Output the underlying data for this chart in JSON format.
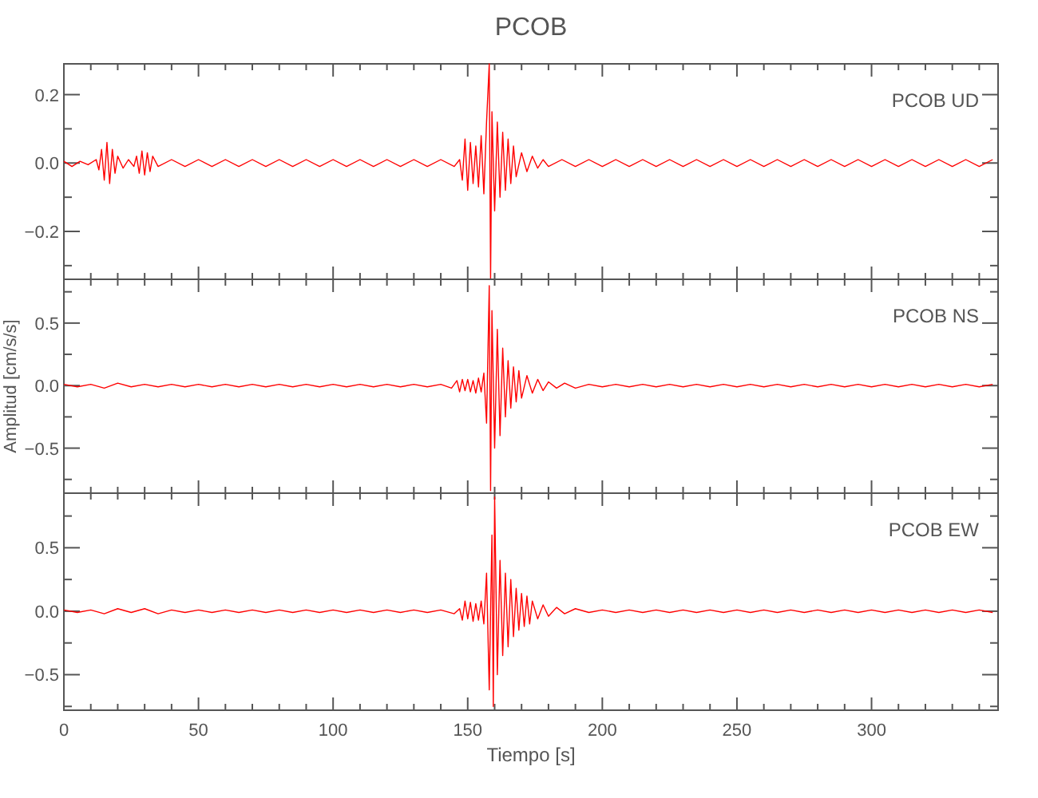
{
  "chart_data": [
    {
      "type": "line",
      "title": "PCOB",
      "annotations": [
        "PCOB   UD"
      ],
      "xlim": [
        0,
        347
      ],
      "ylim": [
        -0.34,
        0.29
      ],
      "tick_labels": "y",
      "grid": false,
      "marker": "none",
      "line_style": "solid",
      "xticks": [
        0,
        {
          "value": 10,
          "label": null
        },
        {
          "value": 20,
          "label": null
        },
        {
          "value": 30,
          "label": null
        },
        {
          "value": 40,
          "label": null
        },
        50,
        {
          "value": 60,
          "label": null
        },
        {
          "value": 70,
          "label": null
        },
        {
          "value": 80,
          "label": null
        },
        {
          "value": 90,
          "label": null
        },
        100,
        {
          "value": 110,
          "label": null
        },
        {
          "value": 120,
          "label": null
        },
        {
          "value": 130,
          "label": null
        },
        {
          "value": 140,
          "label": null
        },
        150,
        {
          "value": 160,
          "label": null
        },
        {
          "value": 170,
          "label": null
        },
        {
          "value": 180,
          "label": null
        },
        {
          "value": 190,
          "label": null
        },
        200,
        {
          "value": 210,
          "label": null
        },
        {
          "value": 220,
          "label": null
        },
        {
          "value": 230,
          "label": null
        },
        {
          "value": 240,
          "label": null
        },
        250,
        {
          "value": 260,
          "label": null
        },
        {
          "value": 270,
          "label": null
        },
        {
          "value": 280,
          "label": null
        },
        {
          "value": 290,
          "label": null
        },
        300,
        {
          "value": 310,
          "label": null
        },
        {
          "value": 320,
          "label": null
        },
        {
          "value": 330,
          "label": null
        },
        {
          "value": 340,
          "label": null
        }
      ],
      "yticks": [
        {
          "value": -0.3,
          "label": null
        },
        {
          "value": -0.2,
          "label": "−0.2"
        },
        {
          "value": -0.1,
          "label": null
        },
        {
          "value": 0,
          "label": "0.0"
        },
        {
          "value": 0.1,
          "label": null
        },
        {
          "value": 0.2,
          "label": "0.2"
        }
      ],
      "series": [
        {
          "color": "#ff0000",
          "x": [
            0,
            3,
            6,
            9,
            12,
            13,
            14,
            15,
            16,
            17,
            18,
            19,
            20,
            22,
            24,
            26,
            27,
            28,
            29,
            30,
            31,
            32,
            33,
            35,
            40,
            45,
            50,
            55,
            60,
            65,
            70,
            75,
            80,
            85,
            90,
            95,
            100,
            105,
            110,
            115,
            120,
            125,
            130,
            135,
            140,
            145,
            147,
            148,
            149,
            150,
            151,
            152,
            153,
            154,
            155,
            156,
            157,
            158,
            158.5,
            159,
            160,
            161,
            162,
            163,
            164,
            165,
            166,
            167,
            168,
            170,
            172,
            174,
            176,
            178,
            180,
            185,
            190,
            195,
            200,
            205,
            210,
            215,
            220,
            225,
            230,
            235,
            240,
            245,
            250,
            255,
            260,
            265,
            270,
            275,
            280,
            285,
            290,
            295,
            300,
            305,
            310,
            315,
            320,
            325,
            330,
            335,
            340,
            345
          ],
          "values": [
            0.005,
            -0.01,
            0.005,
            -0.005,
            0.01,
            -0.02,
            0.04,
            -0.05,
            0.06,
            -0.06,
            0.04,
            -0.03,
            0.02,
            -0.015,
            0.01,
            -0.01,
            0.02,
            -0.03,
            0.035,
            -0.035,
            0.03,
            -0.025,
            0.02,
            -0.01,
            0.01,
            -0.01,
            0.01,
            -0.01,
            0.01,
            -0.01,
            0.01,
            -0.01,
            0.01,
            -0.01,
            0.01,
            -0.01,
            0.01,
            -0.01,
            0.01,
            -0.01,
            0.01,
            -0.01,
            0.01,
            -0.01,
            0.01,
            -0.01,
            0.01,
            -0.05,
            0.07,
            -0.08,
            0.06,
            -0.06,
            0.05,
            -0.07,
            0.08,
            -0.09,
            0.12,
            0.29,
            -0.34,
            0.15,
            -0.14,
            0.12,
            -0.1,
            0.09,
            -0.08,
            0.07,
            -0.06,
            0.05,
            -0.04,
            0.03,
            -0.025,
            0.02,
            -0.015,
            0.01,
            -0.01,
            0.01,
            -0.01,
            0.01,
            -0.01,
            0.01,
            -0.01,
            0.01,
            -0.01,
            0.01,
            -0.01,
            0.01,
            -0.01,
            0.01,
            -0.01,
            0.01,
            -0.01,
            0.01,
            -0.01,
            0.01,
            -0.01,
            0.01,
            -0.01,
            0.01,
            -0.01,
            0.01,
            -0.01,
            0.01,
            -0.01,
            0.01,
            -0.01,
            0.01,
            -0.01,
            0.01
          ]
        }
      ]
    },
    {
      "type": "line",
      "ylabel": "Amplitud [cm/s/s]",
      "annotations": [
        "PCOB   NS"
      ],
      "xlim": [
        0,
        347
      ],
      "ylim": [
        -0.86,
        0.85
      ],
      "tick_labels": "y",
      "grid": false,
      "marker": "none",
      "line_style": "solid",
      "xticks": [
        0,
        {
          "value": 10,
          "label": null
        },
        {
          "value": 20,
          "label": null
        },
        {
          "value": 30,
          "label": null
        },
        {
          "value": 40,
          "label": null
        },
        50,
        {
          "value": 60,
          "label": null
        },
        {
          "value": 70,
          "label": null
        },
        {
          "value": 80,
          "label": null
        },
        {
          "value": 90,
          "label": null
        },
        100,
        {
          "value": 110,
          "label": null
        },
        {
          "value": 120,
          "label": null
        },
        {
          "value": 130,
          "label": null
        },
        {
          "value": 140,
          "label": null
        },
        150,
        {
          "value": 160,
          "label": null
        },
        {
          "value": 170,
          "label": null
        },
        {
          "value": 180,
          "label": null
        },
        {
          "value": 190,
          "label": null
        },
        200,
        {
          "value": 210,
          "label": null
        },
        {
          "value": 220,
          "label": null
        },
        {
          "value": 230,
          "label": null
        },
        {
          "value": 240,
          "label": null
        },
        250,
        {
          "value": 260,
          "label": null
        },
        {
          "value": 270,
          "label": null
        },
        {
          "value": 280,
          "label": null
        },
        {
          "value": 290,
          "label": null
        },
        300,
        {
          "value": 310,
          "label": null
        },
        {
          "value": 320,
          "label": null
        },
        {
          "value": 330,
          "label": null
        },
        {
          "value": 340,
          "label": null
        }
      ],
      "yticks": [
        {
          "value": -0.75,
          "label": null
        },
        {
          "value": -0.5,
          "label": "−0.5"
        },
        {
          "value": -0.25,
          "label": null
        },
        {
          "value": 0,
          "label": "0.0"
        },
        {
          "value": 0.25,
          "label": null
        },
        {
          "value": 0.5,
          "label": "0.5"
        },
        {
          "value": 0.75,
          "label": null
        }
      ],
      "series": [
        {
          "color": "#ff0000",
          "x": [
            0,
            5,
            10,
            15,
            20,
            25,
            30,
            35,
            40,
            45,
            50,
            55,
            60,
            65,
            70,
            75,
            80,
            85,
            90,
            95,
            100,
            105,
            110,
            115,
            120,
            125,
            130,
            135,
            140,
            144,
            146,
            147,
            148,
            149,
            150,
            151,
            152,
            153,
            154,
            155,
            156,
            157,
            158,
            158.5,
            159,
            160,
            161,
            162,
            163,
            164,
            165,
            166,
            167,
            168,
            169,
            170,
            172,
            174,
            176,
            178,
            180,
            183,
            186,
            190,
            195,
            200,
            205,
            210,
            215,
            220,
            225,
            230,
            235,
            240,
            245,
            250,
            255,
            260,
            265,
            270,
            275,
            280,
            285,
            290,
            295,
            300,
            305,
            310,
            315,
            320,
            325,
            330,
            335,
            340,
            345
          ],
          "values": [
            0.01,
            -0.01,
            0.01,
            -0.02,
            0.02,
            -0.01,
            0.01,
            -0.01,
            0.01,
            -0.01,
            0.01,
            -0.01,
            0.01,
            -0.01,
            0.01,
            -0.01,
            0.01,
            -0.01,
            0.01,
            -0.01,
            0.01,
            -0.01,
            0.01,
            -0.01,
            0.01,
            -0.01,
            0.01,
            -0.01,
            0.01,
            -0.02,
            0.04,
            -0.05,
            0.05,
            -0.04,
            0.05,
            -0.05,
            0.04,
            -0.06,
            0.06,
            -0.05,
            0.1,
            -0.3,
            0.8,
            -0.84,
            0.6,
            -0.5,
            0.45,
            -0.4,
            0.3,
            -0.25,
            0.2,
            -0.18,
            0.15,
            -0.13,
            0.12,
            -0.1,
            0.08,
            -0.06,
            0.05,
            -0.04,
            0.03,
            -0.02,
            0.02,
            -0.02,
            0.01,
            -0.01,
            0.01,
            -0.01,
            0.01,
            -0.01,
            0.01,
            -0.01,
            0.01,
            -0.01,
            0.01,
            -0.01,
            0.01,
            -0.01,
            0.01,
            -0.01,
            0.01,
            -0.01,
            0.01,
            -0.01,
            0.01,
            -0.01,
            0.01,
            -0.01,
            0.01,
            -0.01,
            0.01,
            -0.01,
            0.01,
            -0.01,
            0.01
          ]
        }
      ]
    },
    {
      "type": "line",
      "xlabel": "Tiempo [s]",
      "annotations": [
        "PCOB   EW"
      ],
      "xlim": [
        0,
        347
      ],
      "ylim": [
        -0.78,
        0.93
      ],
      "grid": false,
      "marker": "none",
      "line_style": "solid",
      "xticks": [
        0,
        {
          "value": 10,
          "label": null
        },
        {
          "value": 20,
          "label": null
        },
        {
          "value": 30,
          "label": null
        },
        {
          "value": 40,
          "label": null
        },
        50,
        {
          "value": 60,
          "label": null
        },
        {
          "value": 70,
          "label": null
        },
        {
          "value": 80,
          "label": null
        },
        {
          "value": 90,
          "label": null
        },
        100,
        {
          "value": 110,
          "label": null
        },
        {
          "value": 120,
          "label": null
        },
        {
          "value": 130,
          "label": null
        },
        {
          "value": 140,
          "label": null
        },
        150,
        {
          "value": 160,
          "label": null
        },
        {
          "value": 170,
          "label": null
        },
        {
          "value": 180,
          "label": null
        },
        {
          "value": 190,
          "label": null
        },
        200,
        {
          "value": 210,
          "label": null
        },
        {
          "value": 220,
          "label": null
        },
        {
          "value": 230,
          "label": null
        },
        {
          "value": 240,
          "label": null
        },
        250,
        {
          "value": 260,
          "label": null
        },
        {
          "value": 270,
          "label": null
        },
        {
          "value": 280,
          "label": null
        },
        {
          "value": 290,
          "label": null
        },
        300,
        {
          "value": 310,
          "label": null
        },
        {
          "value": 320,
          "label": null
        },
        {
          "value": 330,
          "label": null
        },
        {
          "value": 340,
          "label": null
        }
      ],
      "yticks": [
        {
          "value": -0.75,
          "label": null
        },
        {
          "value": -0.5,
          "label": "−0.5"
        },
        {
          "value": -0.25,
          "label": null
        },
        {
          "value": 0,
          "label": "0.0"
        },
        {
          "value": 0.25,
          "label": null
        },
        {
          "value": 0.5,
          "label": "0.5"
        },
        {
          "value": 0.75,
          "label": null
        }
      ],
      "series": [
        {
          "color": "#ff0000",
          "x": [
            0,
            5,
            10,
            15,
            20,
            25,
            30,
            35,
            40,
            45,
            50,
            55,
            60,
            65,
            70,
            75,
            80,
            85,
            90,
            95,
            100,
            105,
            110,
            115,
            120,
            125,
            130,
            135,
            140,
            145,
            147,
            148,
            149,
            150,
            151,
            152,
            153,
            154,
            155,
            156,
            157,
            158,
            159,
            159.5,
            160,
            161,
            162,
            163,
            164,
            165,
            166,
            167,
            168,
            169,
            170,
            171,
            172,
            173,
            174,
            176,
            178,
            180,
            183,
            186,
            190,
            195,
            200,
            205,
            210,
            215,
            220,
            225,
            230,
            235,
            240,
            245,
            250,
            255,
            260,
            265,
            270,
            275,
            280,
            285,
            290,
            295,
            300,
            305,
            310,
            315,
            320,
            325,
            330,
            335,
            340,
            345
          ],
          "values": [
            0.01,
            -0.01,
            0.01,
            -0.02,
            0.02,
            -0.01,
            0.02,
            -0.02,
            0.01,
            -0.01,
            0.01,
            -0.01,
            0.01,
            -0.01,
            0.01,
            -0.01,
            0.01,
            -0.01,
            0.01,
            -0.01,
            0.01,
            -0.01,
            0.01,
            -0.01,
            0.01,
            -0.01,
            0.01,
            -0.01,
            0.01,
            -0.02,
            0.02,
            -0.07,
            0.08,
            -0.06,
            0.07,
            -0.08,
            0.06,
            -0.07,
            0.08,
            -0.1,
            0.3,
            -0.62,
            0.6,
            -0.75,
            0.9,
            -0.5,
            0.4,
            -0.35,
            0.3,
            -0.28,
            0.25,
            -0.2,
            0.18,
            -0.15,
            0.14,
            -0.12,
            0.12,
            -0.1,
            0.08,
            -0.06,
            0.05,
            -0.04,
            0.03,
            -0.02,
            0.02,
            -0.01,
            0.01,
            -0.01,
            0.01,
            -0.01,
            0.01,
            -0.01,
            0.01,
            -0.01,
            0.01,
            -0.01,
            0.01,
            -0.01,
            0.01,
            -0.01,
            0.01,
            -0.01,
            0.01,
            -0.01,
            0.01,
            -0.01,
            0.01,
            -0.01,
            0.01,
            -0.01,
            0.01,
            -0.01,
            0.01,
            -0.01,
            0.01,
            -0.01
          ]
        }
      ]
    }
  ]
}
